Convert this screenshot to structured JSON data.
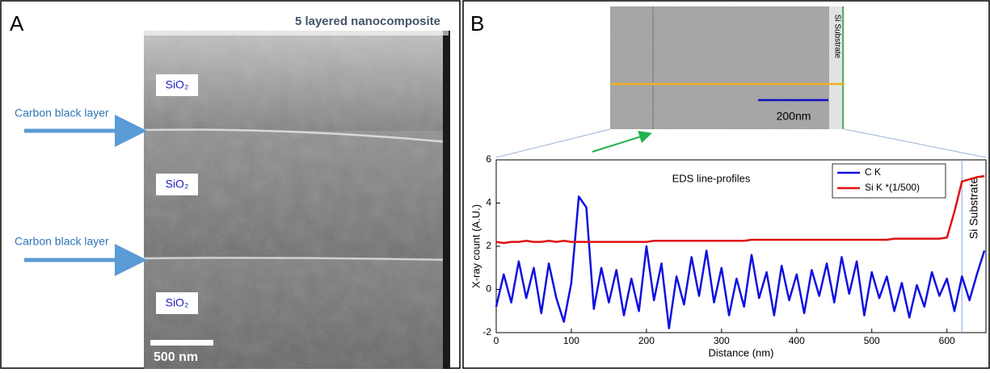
{
  "panel_a": {
    "label": "A",
    "title": "5 layered nanocomposite",
    "layers": [
      "SiO₂",
      "SiO₂",
      "SiO₂"
    ],
    "arrows": [
      "Carbon black layer",
      "Carbon black layer"
    ],
    "scale_bar": "500 nm"
  },
  "panel_b": {
    "label": "B",
    "inset_label": "Si Substrate",
    "inset_scale_bar": "200nm"
  },
  "chart_data": {
    "type": "line",
    "title": "EDS line-profiles",
    "xlabel": "Distance (nm)",
    "ylabel": "X-ray count (A.U.)",
    "annotation": "Si Substrate",
    "marker_x": 620,
    "x": [
      0,
      10,
      20,
      30,
      40,
      50,
      60,
      70,
      80,
      90,
      100,
      110,
      120,
      130,
      140,
      150,
      160,
      170,
      180,
      190,
      200,
      210,
      220,
      230,
      240,
      250,
      260,
      270,
      280,
      290,
      300,
      310,
      320,
      330,
      340,
      350,
      360,
      370,
      380,
      390,
      400,
      410,
      420,
      430,
      440,
      450,
      460,
      470,
      480,
      490,
      500,
      510,
      520,
      530,
      540,
      550,
      560,
      570,
      580,
      590,
      600,
      610,
      620,
      630,
      640,
      650
    ],
    "series": [
      {
        "name": "C K",
        "color": "#1010e0",
        "values": [
          -0.8,
          0.7,
          -0.6,
          1.3,
          -0.4,
          1.0,
          -1.1,
          1.2,
          -0.4,
          -1.5,
          0.3,
          4.3,
          3.8,
          -0.9,
          1.0,
          -0.6,
          0.9,
          -1.2,
          0.5,
          -1.0,
          2.0,
          -0.5,
          1.2,
          -1.8,
          0.6,
          -0.7,
          1.5,
          -0.3,
          1.8,
          -0.6,
          1.0,
          -1.2,
          0.5,
          -0.8,
          1.6,
          -0.4,
          0.8,
          -1.2,
          1.1,
          -0.5,
          0.7,
          -1.1,
          0.9,
          -0.3,
          1.2,
          -0.6,
          1.5,
          -0.2,
          1.3,
          -1.2,
          0.8,
          -0.4,
          0.6,
          -1.0,
          0.3,
          -1.3,
          0.2,
          -0.8,
          0.8,
          -0.3,
          0.5,
          -1.0,
          0.6,
          -0.5,
          0.7,
          1.8
        ]
      },
      {
        "name": "Si K *(1/500)",
        "color": "#e01010",
        "values": [
          2.2,
          2.15,
          2.2,
          2.2,
          2.25,
          2.2,
          2.2,
          2.25,
          2.2,
          2.25,
          2.2,
          2.2,
          2.2,
          2.2,
          2.2,
          2.2,
          2.2,
          2.2,
          2.2,
          2.2,
          2.2,
          2.25,
          2.25,
          2.25,
          2.25,
          2.25,
          2.25,
          2.25,
          2.25,
          2.25,
          2.25,
          2.25,
          2.25,
          2.25,
          2.3,
          2.3,
          2.3,
          2.3,
          2.3,
          2.3,
          2.3,
          2.3,
          2.3,
          2.3,
          2.3,
          2.3,
          2.3,
          2.3,
          2.3,
          2.3,
          2.3,
          2.3,
          2.3,
          2.35,
          2.35,
          2.35,
          2.35,
          2.35,
          2.35,
          2.35,
          2.4,
          3.6,
          5.0,
          5.1,
          5.2,
          5.25
        ]
      }
    ],
    "xlim": [
      0,
      652
    ],
    "ylim": [
      -2,
      6
    ],
    "xticks": [
      0,
      100,
      200,
      300,
      400,
      500,
      600
    ],
    "yticks": [
      -2,
      0,
      2,
      4,
      6
    ],
    "legend": "upper right",
    "grid": false
  }
}
